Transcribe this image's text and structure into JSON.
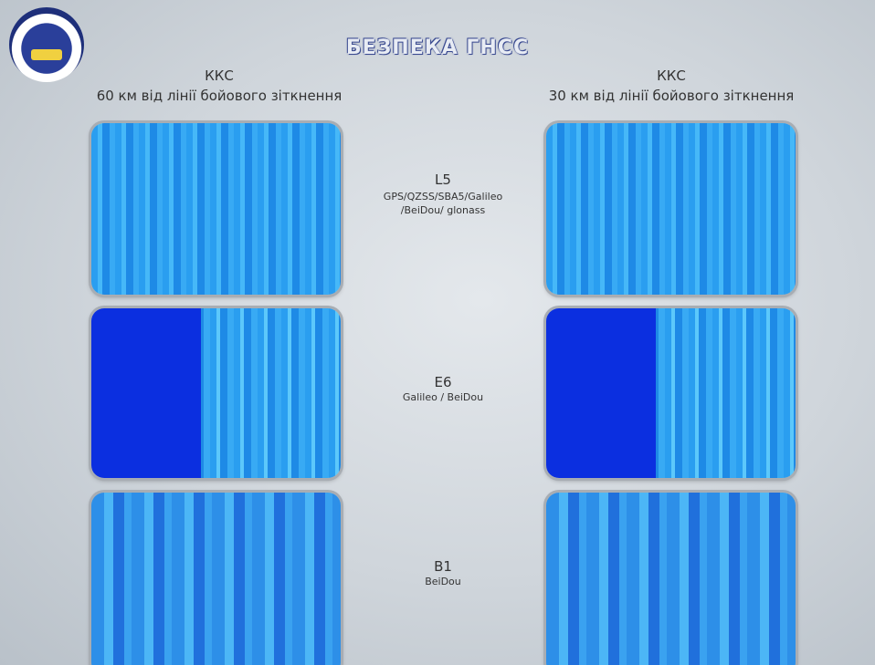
{
  "header": {
    "title": "БЕЗПЕКА ГНСС"
  },
  "columns": [
    {
      "label": "ККС",
      "subtitle": "60 км від лінії бойового зіткнення"
    },
    {
      "label": "ККС",
      "subtitle": "30 км від лінії бойового зіткнення"
    }
  ],
  "bands": [
    {
      "name": "L5",
      "systems": "GPS/QZSS/SBA5/Galileo /BeiDou/ glonass"
    },
    {
      "name": "E6",
      "systems": "Galileo / BeiDou"
    },
    {
      "name": "B1",
      "systems": "BeiDou"
    }
  ]
}
